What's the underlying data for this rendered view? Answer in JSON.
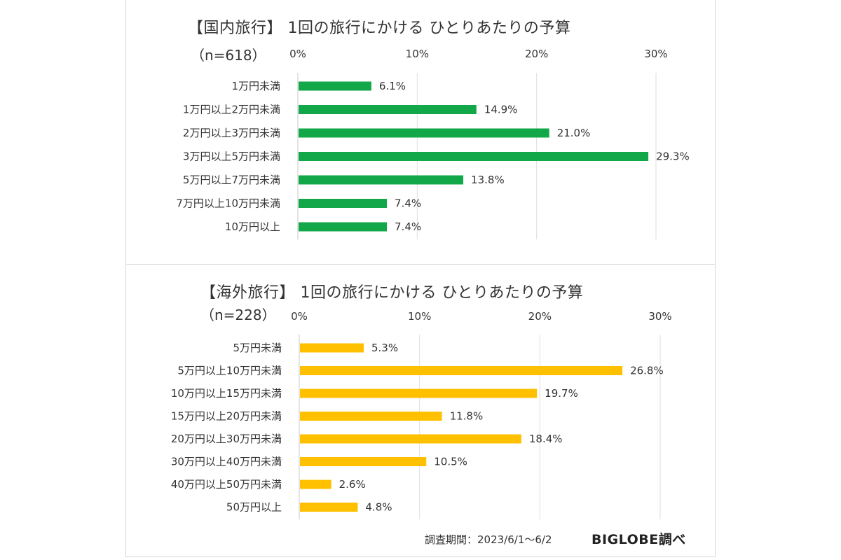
{
  "chart_data": [
    {
      "type": "bar",
      "orientation": "horizontal",
      "title": "【国内旅行】 1回の旅行にかける ひとりあたりの予算",
      "subtitle": "（n=618）",
      "categories": [
        "1万円未満",
        "1万円以上2万円未満",
        "2万円以上3万円未満",
        "3万円以上5万円未満",
        "5万円以上7万円未満",
        "7万円以上10万円未満",
        "10万円以上"
      ],
      "values": [
        6.1,
        14.9,
        21.0,
        29.3,
        13.8,
        7.4,
        7.4
      ],
      "data_labels": [
        "6.1%",
        "14.9%",
        "21.0%",
        "29.3%",
        "13.8%",
        "7.4%",
        "7.4%"
      ],
      "ticks": [
        "0%",
        "10%",
        "20%",
        "30%"
      ],
      "xlim": [
        0,
        30
      ],
      "axis_position": "top",
      "grid": true,
      "color": "#12A84A"
    },
    {
      "type": "bar",
      "orientation": "horizontal",
      "title": "【海外旅行】 1回の旅行にかける ひとりあたりの予算",
      "subtitle": "（n=228）",
      "categories": [
        "5万円未満",
        "5万円以上10万円未満",
        "10万円以上15万円未満",
        "15万円以上20万円未満",
        "20万円以上30万円未満",
        "30万円以上40万円未満",
        "40万円以上50万円未満",
        "50万円以上"
      ],
      "values": [
        5.3,
        26.8,
        19.7,
        11.8,
        18.4,
        10.5,
        2.6,
        4.8
      ],
      "data_labels": [
        "5.3%",
        "26.8%",
        "19.7%",
        "11.8%",
        "18.4%",
        "10.5%",
        "2.6%",
        "4.8%"
      ],
      "ticks": [
        "0%",
        "10%",
        "20%",
        "30%"
      ],
      "xlim": [
        0,
        30
      ],
      "axis_position": "top",
      "grid": true,
      "color": "#FFC000"
    }
  ],
  "footer": {
    "survey_period": "調査期間：2023/6/1～6/2",
    "brand": "BIGLOBE調べ"
  }
}
